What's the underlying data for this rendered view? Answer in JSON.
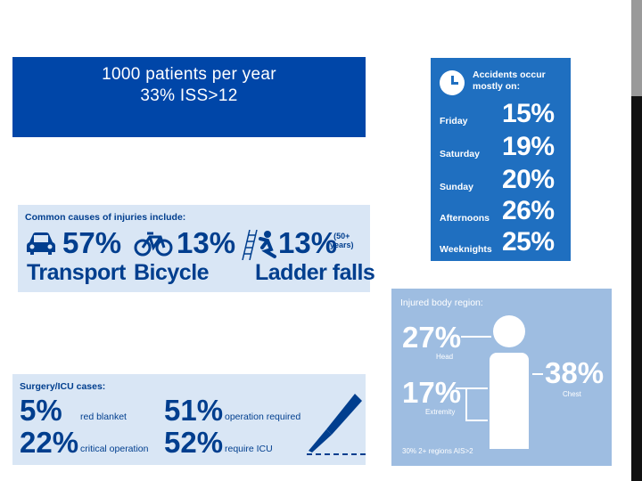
{
  "header": {
    "line1": "1000 patients per year",
    "line2": "33% ISS>12"
  },
  "causes": {
    "heading": "Common causes of injuries include:",
    "items": [
      {
        "icon": "car-icon",
        "percent": "57%",
        "label": "Transport"
      },
      {
        "icon": "bicycle-icon",
        "percent": "13%",
        "label": "Bicycle"
      },
      {
        "icon": "ladder-fall-icon",
        "percent": "13%",
        "label": "Ladder falls",
        "note_line1": "(50+",
        "note_line2": "years)"
      }
    ]
  },
  "days": {
    "icon": "clock-icon",
    "heading_line1": "Accidents occur",
    "heading_line2": "mostly on:",
    "rows": [
      {
        "label": "Friday",
        "percent": "15%"
      },
      {
        "label": "Saturday",
        "percent": "19%"
      },
      {
        "label": "Sunday",
        "percent": "20%"
      },
      {
        "label": "Afternoons",
        "percent": "26%"
      },
      {
        "label": "Weeknights",
        "percent": "25%"
      }
    ]
  },
  "surgery": {
    "heading": "Surgery/ICU cases:",
    "items": [
      {
        "percent": "5%",
        "label": "red blanket"
      },
      {
        "percent": "51%",
        "label": "operation required"
      },
      {
        "percent": "22%",
        "label": "critical operation"
      },
      {
        "percent": "52%",
        "label": "require ICU"
      }
    ],
    "icon": "scalpel-icon"
  },
  "body_region": {
    "heading": "Injured body region:",
    "head": {
      "percent": "27%",
      "label": "Head"
    },
    "extremity": {
      "percent": "17%",
      "label": "Extremity"
    },
    "chest": {
      "percent": "38%",
      "label": "Chest"
    },
    "footnote": "30% 2+ regions AIS>2",
    "icon": "human-figure-icon"
  },
  "colors": {
    "header_blue": "#0046a8",
    "panel_blue": "#1f6fc0",
    "panel_light": "#d9e6f5",
    "body_panel": "#9ebde1",
    "text_navy": "#003e8e"
  }
}
